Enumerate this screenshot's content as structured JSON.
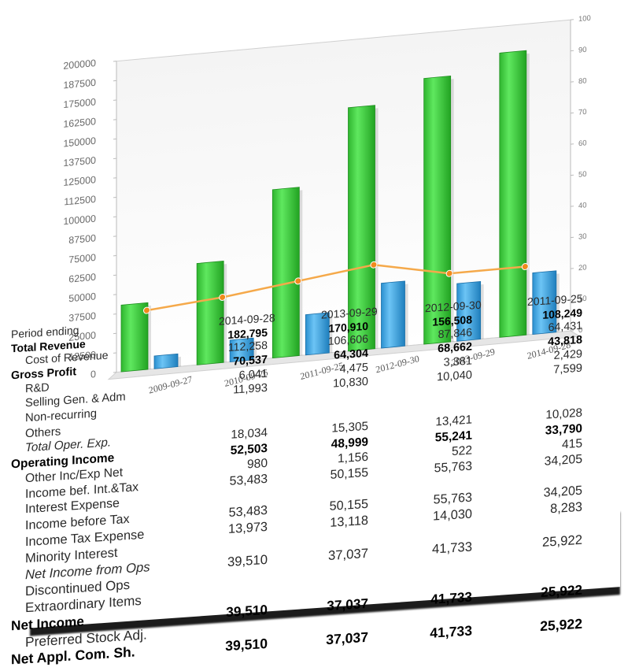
{
  "chart_data": {
    "type": "bar",
    "categories": [
      "2009-09-27",
      "2010-09-26",
      "2011-09-25",
      "2012-09-30",
      "2013-09-29",
      "2014-09-28"
    ],
    "series": [
      {
        "values": [
          42905,
          65225,
          108249,
          156508,
          170910,
          182795
        ],
        "color": "#3fd23f"
      },
      {
        "values": [
          8235,
          14013,
          25922,
          41733,
          37037,
          39510
        ],
        "color": "#3aa5e6"
      },
      {
        "values": [
          19,
          21,
          24,
          27,
          22,
          22
        ],
        "color": "#f5a94a",
        "type": "line",
        "axis": "right"
      }
    ],
    "left_axis": {
      "min": 0,
      "max": 200000,
      "step": 12500
    },
    "right_axis": {
      "min": 0,
      "max": 100,
      "step": 10
    },
    "grid": false
  },
  "table": {
    "header": {
      "label": "Period ending",
      "cols": [
        "2014-09-28",
        "2013-09-29",
        "2012-09-30",
        "2011-09-25"
      ]
    },
    "rows": [
      {
        "label": "Total Revenue",
        "bold": true,
        "values": [
          "182,795",
          "170,910",
          "156,508",
          "108,249"
        ]
      },
      {
        "label": "Cost of Revenue",
        "values": [
          "112,258",
          "106,606",
          "87,846",
          "64,431"
        ]
      },
      {
        "label": "Gross Profit",
        "bold": true,
        "values": [
          "70,537",
          "64,304",
          "68,662",
          "43,818"
        ]
      },
      {
        "label": "R&D",
        "values": [
          "6,041",
          "4,475",
          "3,381",
          "2,429"
        ]
      },
      {
        "label": "Selling Gen. & Adm",
        "values": [
          "11,993",
          "10,830",
          "10,040",
          "7,599"
        ]
      },
      {
        "label": "Non-recurring",
        "values": [
          "",
          "",
          "",
          ""
        ]
      },
      {
        "label": "Others",
        "values": [
          "",
          "",
          "",
          ""
        ]
      },
      {
        "label": "Total Oper. Exp.",
        "italic": true,
        "values": [
          "18,034",
          "15,305",
          "13,421",
          "10,028"
        ]
      },
      {
        "label": "Operating Income",
        "bold": true,
        "values": [
          "52,503",
          "48,999",
          "55,241",
          "33,790"
        ]
      },
      {
        "label": "Other Inc/Exp Net",
        "values": [
          "980",
          "1,156",
          "522",
          "415"
        ]
      },
      {
        "label": "Income bef. Int.&Tax",
        "values": [
          "53,483",
          "50,155",
          "55,763",
          "34,205"
        ]
      },
      {
        "label": "Interest Expense",
        "values": [
          "",
          "",
          "",
          ""
        ]
      },
      {
        "label": "Income before Tax",
        "values": [
          "53,483",
          "50,155",
          "55,763",
          "34,205"
        ]
      },
      {
        "label": "Income Tax Expense",
        "values": [
          "13,973",
          "13,118",
          "14,030",
          "8,283"
        ]
      },
      {
        "label": "Minority Interest",
        "values": [
          "",
          "",
          "",
          ""
        ]
      },
      {
        "label": "Net Income from Ops",
        "italic": true,
        "values": [
          "39,510",
          "37,037",
          "41,733",
          "25,922"
        ]
      },
      {
        "label": "Discontinued Ops",
        "values": [
          "",
          "",
          "",
          ""
        ]
      },
      {
        "label": "Extraordinary Items",
        "values": [
          "",
          "",
          "",
          ""
        ]
      },
      {
        "label": "Net Income",
        "bold": true,
        "values": [
          "39,510",
          "37,037",
          "41,733",
          "25,922"
        ]
      },
      {
        "label": "Preferred Stock Adj.",
        "values": [
          "",
          "",
          "",
          ""
        ]
      },
      {
        "label": "Net Appl. Com. Sh.",
        "bold": true,
        "values": [
          "39,510",
          "37,037",
          "41,733",
          "25,922"
        ]
      }
    ]
  }
}
